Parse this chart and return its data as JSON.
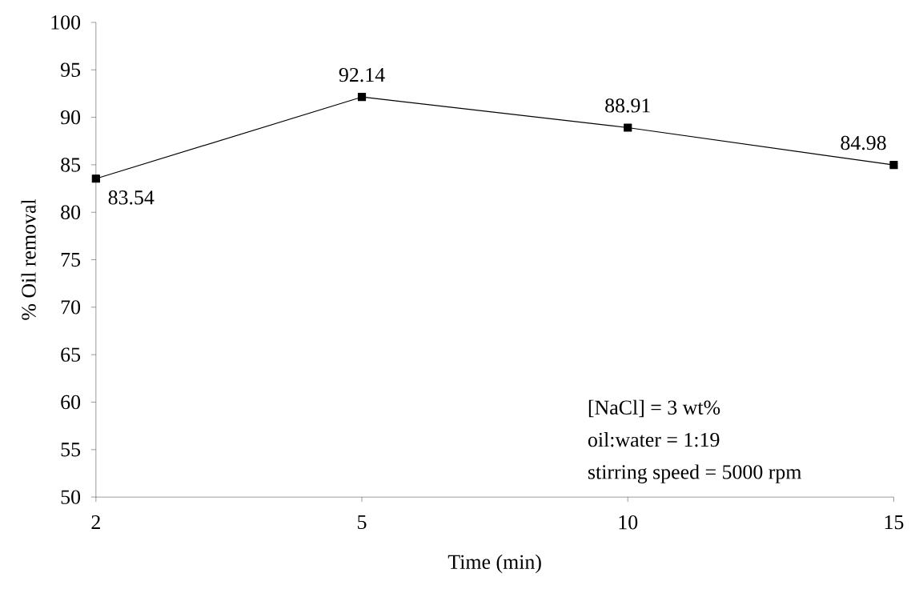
{
  "chart_data": {
    "type": "line",
    "categories": [
      "2",
      "5",
      "10",
      "15"
    ],
    "values": [
      83.54,
      92.14,
      88.91,
      84.98
    ],
    "color": "#000000",
    "marker": "square",
    "line_style": "solid",
    "data_labels": true,
    "grid": false,
    "xlabel": "Time (min)",
    "ylabel": "% Oil removal",
    "ylim": [
      50,
      100
    ],
    "yticks": [
      50,
      55,
      60,
      65,
      70,
      75,
      80,
      85,
      90,
      95,
      100
    ],
    "annotations": [
      "[NaCl] = 3 wt%",
      "oil:water = 1:19",
      "stirring speed = 5000 rpm"
    ]
  }
}
